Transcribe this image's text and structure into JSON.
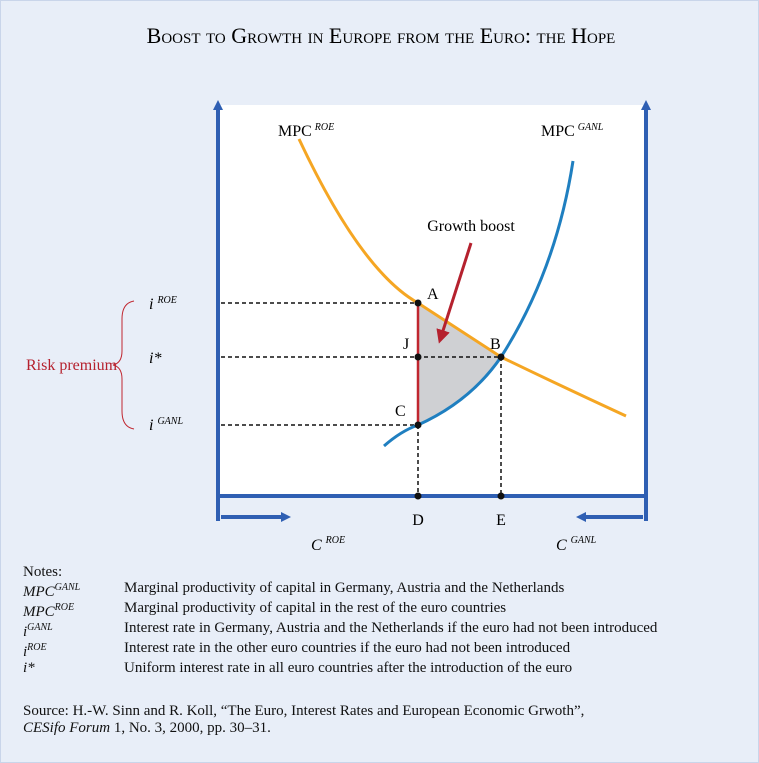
{
  "title": "Boost to Growth in Europe from the Euro: the Hope",
  "curves": {
    "roe": {
      "base": "MPC",
      "sup": "ROE"
    },
    "ganl": {
      "base": "MPC",
      "sup": "GANL"
    }
  },
  "annotation": "Growth boost",
  "rates": {
    "roe": {
      "base": "i",
      "sup": "ROE"
    },
    "star": "i*",
    "ganl": {
      "base": "i",
      "sup": "GANL"
    }
  },
  "risk_premium": "Risk premium",
  "points": {
    "A": "A",
    "J": "J",
    "B": "B",
    "C": "C",
    "D": "D",
    "E": "E"
  },
  "axes": {
    "left": {
      "base": "C",
      "sup": "ROE"
    },
    "right": {
      "base": "C",
      "sup": "GANL"
    }
  },
  "notes": {
    "heading": "Notes:",
    "items": [
      {
        "base": "MPC",
        "sup": "GANL",
        "definition": "Marginal productivity of capital in Germany, Austria and the Netherlands"
      },
      {
        "base": "MPC",
        "sup": "ROE",
        "definition": "Marginal productivity of capital in the rest of the euro countries"
      },
      {
        "base": "i",
        "sup": "GANL",
        "definition": "Interest rate in Germany, Austria and the Netherlands if the euro had not been introduced"
      },
      {
        "base": "i",
        "sup": "ROE",
        "definition": "Interest rate in the other euro countries if the euro had not been introduced"
      },
      {
        "base": "i*",
        "sup": null,
        "definition": "Uniform interest rate in all euro countries after the introduction of the euro"
      }
    ]
  },
  "source": {
    "line1": "Source: H.-W. Sinn and R. Koll, “The Euro, Interest Rates and European Economic Grwoth”,",
    "journal": "CESifo Forum",
    "rest": " 1, No. 3, 2000, pp. 30–31."
  }
}
